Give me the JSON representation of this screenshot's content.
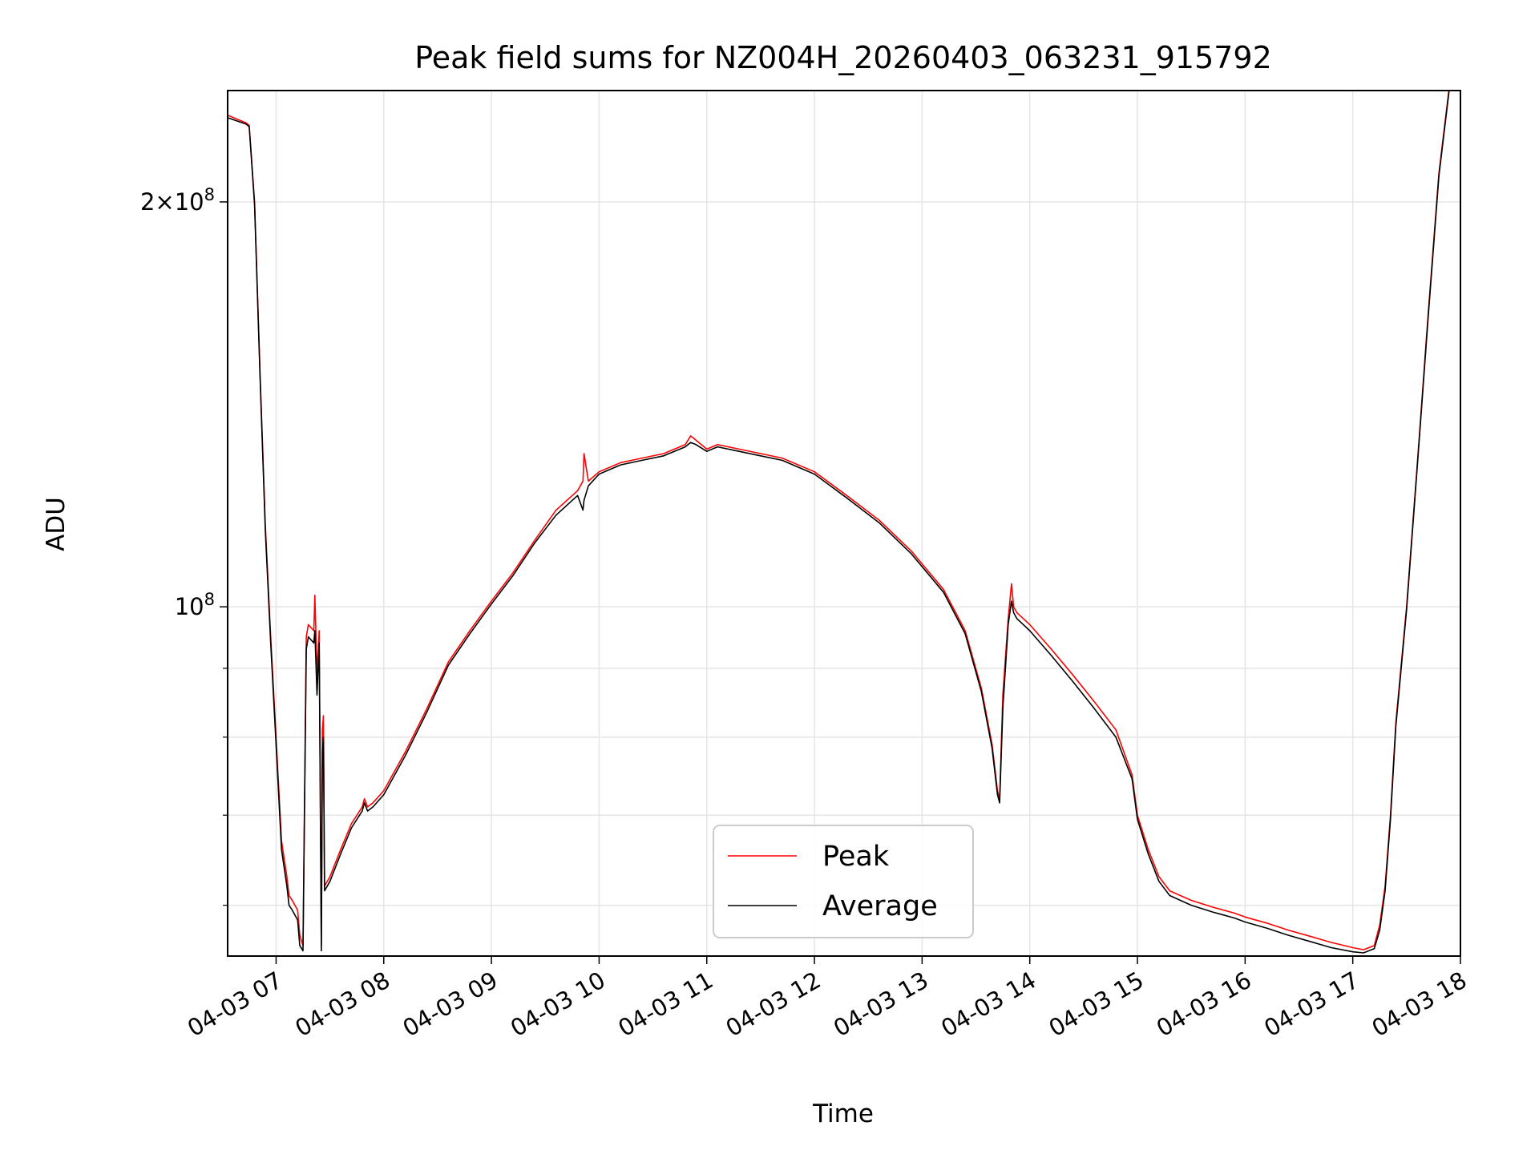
{
  "chart_data": {
    "type": "line",
    "title": "Peak field sums for NZ004H_20260403_063231_915792",
    "xlabel": "Time",
    "ylabel": "ADU",
    "yscale": "log",
    "ylim": [
      55000000,
      242000000
    ],
    "xlim_hours": [
      6.55,
      18.0
    ],
    "grid": true,
    "legend_position": "lower-center",
    "x_ticks": [
      {
        "hour": 7,
        "label": "04-03 07"
      },
      {
        "hour": 8,
        "label": "04-03 08"
      },
      {
        "hour": 9,
        "label": "04-03 09"
      },
      {
        "hour": 10,
        "label": "04-03 10"
      },
      {
        "hour": 11,
        "label": "04-03 11"
      },
      {
        "hour": 12,
        "label": "04-03 12"
      },
      {
        "hour": 13,
        "label": "04-03 13"
      },
      {
        "hour": 14,
        "label": "04-03 14"
      },
      {
        "hour": 15,
        "label": "04-03 15"
      },
      {
        "hour": 16,
        "label": "04-03 16"
      },
      {
        "hour": 17,
        "label": "04-03 17"
      },
      {
        "hour": 18,
        "label": "04-03 18"
      }
    ],
    "y_major_ticks": [
      {
        "value": 100000000,
        "base": "10",
        "exp": "8"
      },
      {
        "value": 200000000,
        "mant": "2",
        "base": "10",
        "exp": "8"
      }
    ],
    "y_minor_ticks": [
      60000000,
      70000000,
      80000000,
      90000000
    ],
    "series": [
      {
        "name": "Peak",
        "color": "#ff0000",
        "x_hours": [
          6.55,
          6.72,
          6.75,
          6.8,
          6.85,
          6.9,
          6.95,
          7.0,
          7.05,
          7.1,
          7.12,
          7.15,
          7.2,
          7.22,
          7.25,
          7.28,
          7.3,
          7.35,
          7.36,
          7.38,
          7.4,
          7.42,
          7.43,
          7.44,
          7.45,
          7.5,
          7.6,
          7.7,
          7.8,
          7.82,
          7.85,
          7.9,
          8.0,
          8.2,
          8.4,
          8.6,
          8.8,
          9.0,
          9.2,
          9.4,
          9.6,
          9.8,
          9.85,
          9.86,
          9.9,
          10.0,
          10.2,
          10.4,
          10.6,
          10.8,
          10.85,
          10.9,
          11.0,
          11.1,
          11.3,
          11.5,
          11.7,
          12.0,
          12.3,
          12.6,
          12.9,
          13.2,
          13.4,
          13.55,
          13.65,
          13.7,
          13.72,
          13.75,
          13.8,
          13.83,
          13.85,
          13.88,
          14.0,
          14.2,
          14.4,
          14.6,
          14.8,
          14.95,
          15.0,
          15.1,
          15.2,
          15.3,
          15.5,
          15.7,
          15.9,
          16.0,
          16.2,
          16.4,
          16.6,
          16.8,
          17.0,
          17.1,
          17.2,
          17.25,
          17.3,
          17.35,
          17.4,
          17.5,
          17.6,
          17.7,
          17.8,
          17.9
        ],
        "values": [
          232000000,
          229000000,
          228000000,
          200000000,
          150000000,
          115000000,
          95000000,
          80000000,
          67000000,
          63000000,
          61000000,
          60500000,
          59500000,
          57000000,
          56000000,
          95000000,
          97000000,
          96000000,
          102000000,
          89000000,
          96000000,
          56000000,
          81000000,
          83000000,
          62000000,
          63000000,
          66000000,
          69000000,
          71000000,
          72000000,
          71000000,
          71500000,
          73000000,
          78000000,
          84000000,
          91000000,
          96000000,
          101000000,
          106000000,
          112000000,
          118000000,
          122000000,
          124000000,
          130000000,
          124000000,
          126000000,
          128000000,
          129000000,
          130000000,
          132000000,
          134000000,
          133000000,
          131000000,
          132000000,
          131000000,
          130000000,
          129000000,
          126000000,
          121000000,
          116000000,
          110000000,
          103000000,
          96000000,
          87000000,
          79000000,
          73000000,
          72000000,
          86000000,
          98000000,
          104000000,
          100000000,
          99000000,
          97000000,
          93000000,
          89000000,
          85000000,
          81000000,
          75000000,
          70000000,
          66000000,
          63000000,
          61500000,
          60500000,
          59800000,
          59200000,
          58800000,
          58200000,
          57500000,
          56900000,
          56300000,
          55800000,
          55600000,
          56000000,
          58000000,
          62000000,
          70000000,
          82000000,
          100000000,
          128000000,
          165000000,
          210000000,
          245000000
        ]
      },
      {
        "name": "Average",
        "color": "#000000",
        "x_hours": [
          6.55,
          6.72,
          6.75,
          6.8,
          6.85,
          6.9,
          6.95,
          7.0,
          7.05,
          7.1,
          7.12,
          7.15,
          7.2,
          7.22,
          7.25,
          7.28,
          7.3,
          7.35,
          7.36,
          7.38,
          7.4,
          7.42,
          7.43,
          7.44,
          7.45,
          7.5,
          7.6,
          7.7,
          7.8,
          7.82,
          7.85,
          7.9,
          8.0,
          8.2,
          8.4,
          8.6,
          8.8,
          9.0,
          9.2,
          9.4,
          9.6,
          9.8,
          9.85,
          9.86,
          9.9,
          10.0,
          10.2,
          10.4,
          10.6,
          10.8,
          10.85,
          10.9,
          11.0,
          11.1,
          11.3,
          11.5,
          11.7,
          12.0,
          12.3,
          12.6,
          12.9,
          13.2,
          13.4,
          13.55,
          13.65,
          13.7,
          13.72,
          13.75,
          13.8,
          13.83,
          13.85,
          13.88,
          14.0,
          14.2,
          14.4,
          14.6,
          14.8,
          14.95,
          15.0,
          15.1,
          15.2,
          15.3,
          15.5,
          15.7,
          15.9,
          16.0,
          16.2,
          16.4,
          16.6,
          16.8,
          17.0,
          17.1,
          17.2,
          17.25,
          17.3,
          17.35,
          17.4,
          17.5,
          17.6,
          17.7,
          17.8,
          17.9
        ],
        "values": [
          231000000,
          228500000,
          227500000,
          199000000,
          149000000,
          114000000,
          94000000,
          79000000,
          66000000,
          62000000,
          60000000,
          59500000,
          58500000,
          56000000,
          55500000,
          93000000,
          95000000,
          94000000,
          96000000,
          86000000,
          94000000,
          55500000,
          78000000,
          80000000,
          61500000,
          62500000,
          65500000,
          68500000,
          70500000,
          71500000,
          70500000,
          71000000,
          72500000,
          77500000,
          83500000,
          90500000,
          95500000,
          100500000,
          105500000,
          111500000,
          117000000,
          121000000,
          118000000,
          120000000,
          123000000,
          125500000,
          127500000,
          128500000,
          129500000,
          131500000,
          132500000,
          132000000,
          130500000,
          131500000,
          130500000,
          129500000,
          128500000,
          125500000,
          120500000,
          115500000,
          109500000,
          102500000,
          95500000,
          86500000,
          78500000,
          72500000,
          71500000,
          84000000,
          97000000,
          101000000,
          99000000,
          98000000,
          96000000,
          92000000,
          88000000,
          84000000,
          80000000,
          74500000,
          69500000,
          65500000,
          62500000,
          61000000,
          60000000,
          59300000,
          58700000,
          58300000,
          57700000,
          57000000,
          56400000,
          55800000,
          55400000,
          55300000,
          55700000,
          57500000,
          61500000,
          69500000,
          81500000,
          99500000,
          127500000,
          164000000,
          209000000,
          244000000
        ]
      }
    ]
  }
}
